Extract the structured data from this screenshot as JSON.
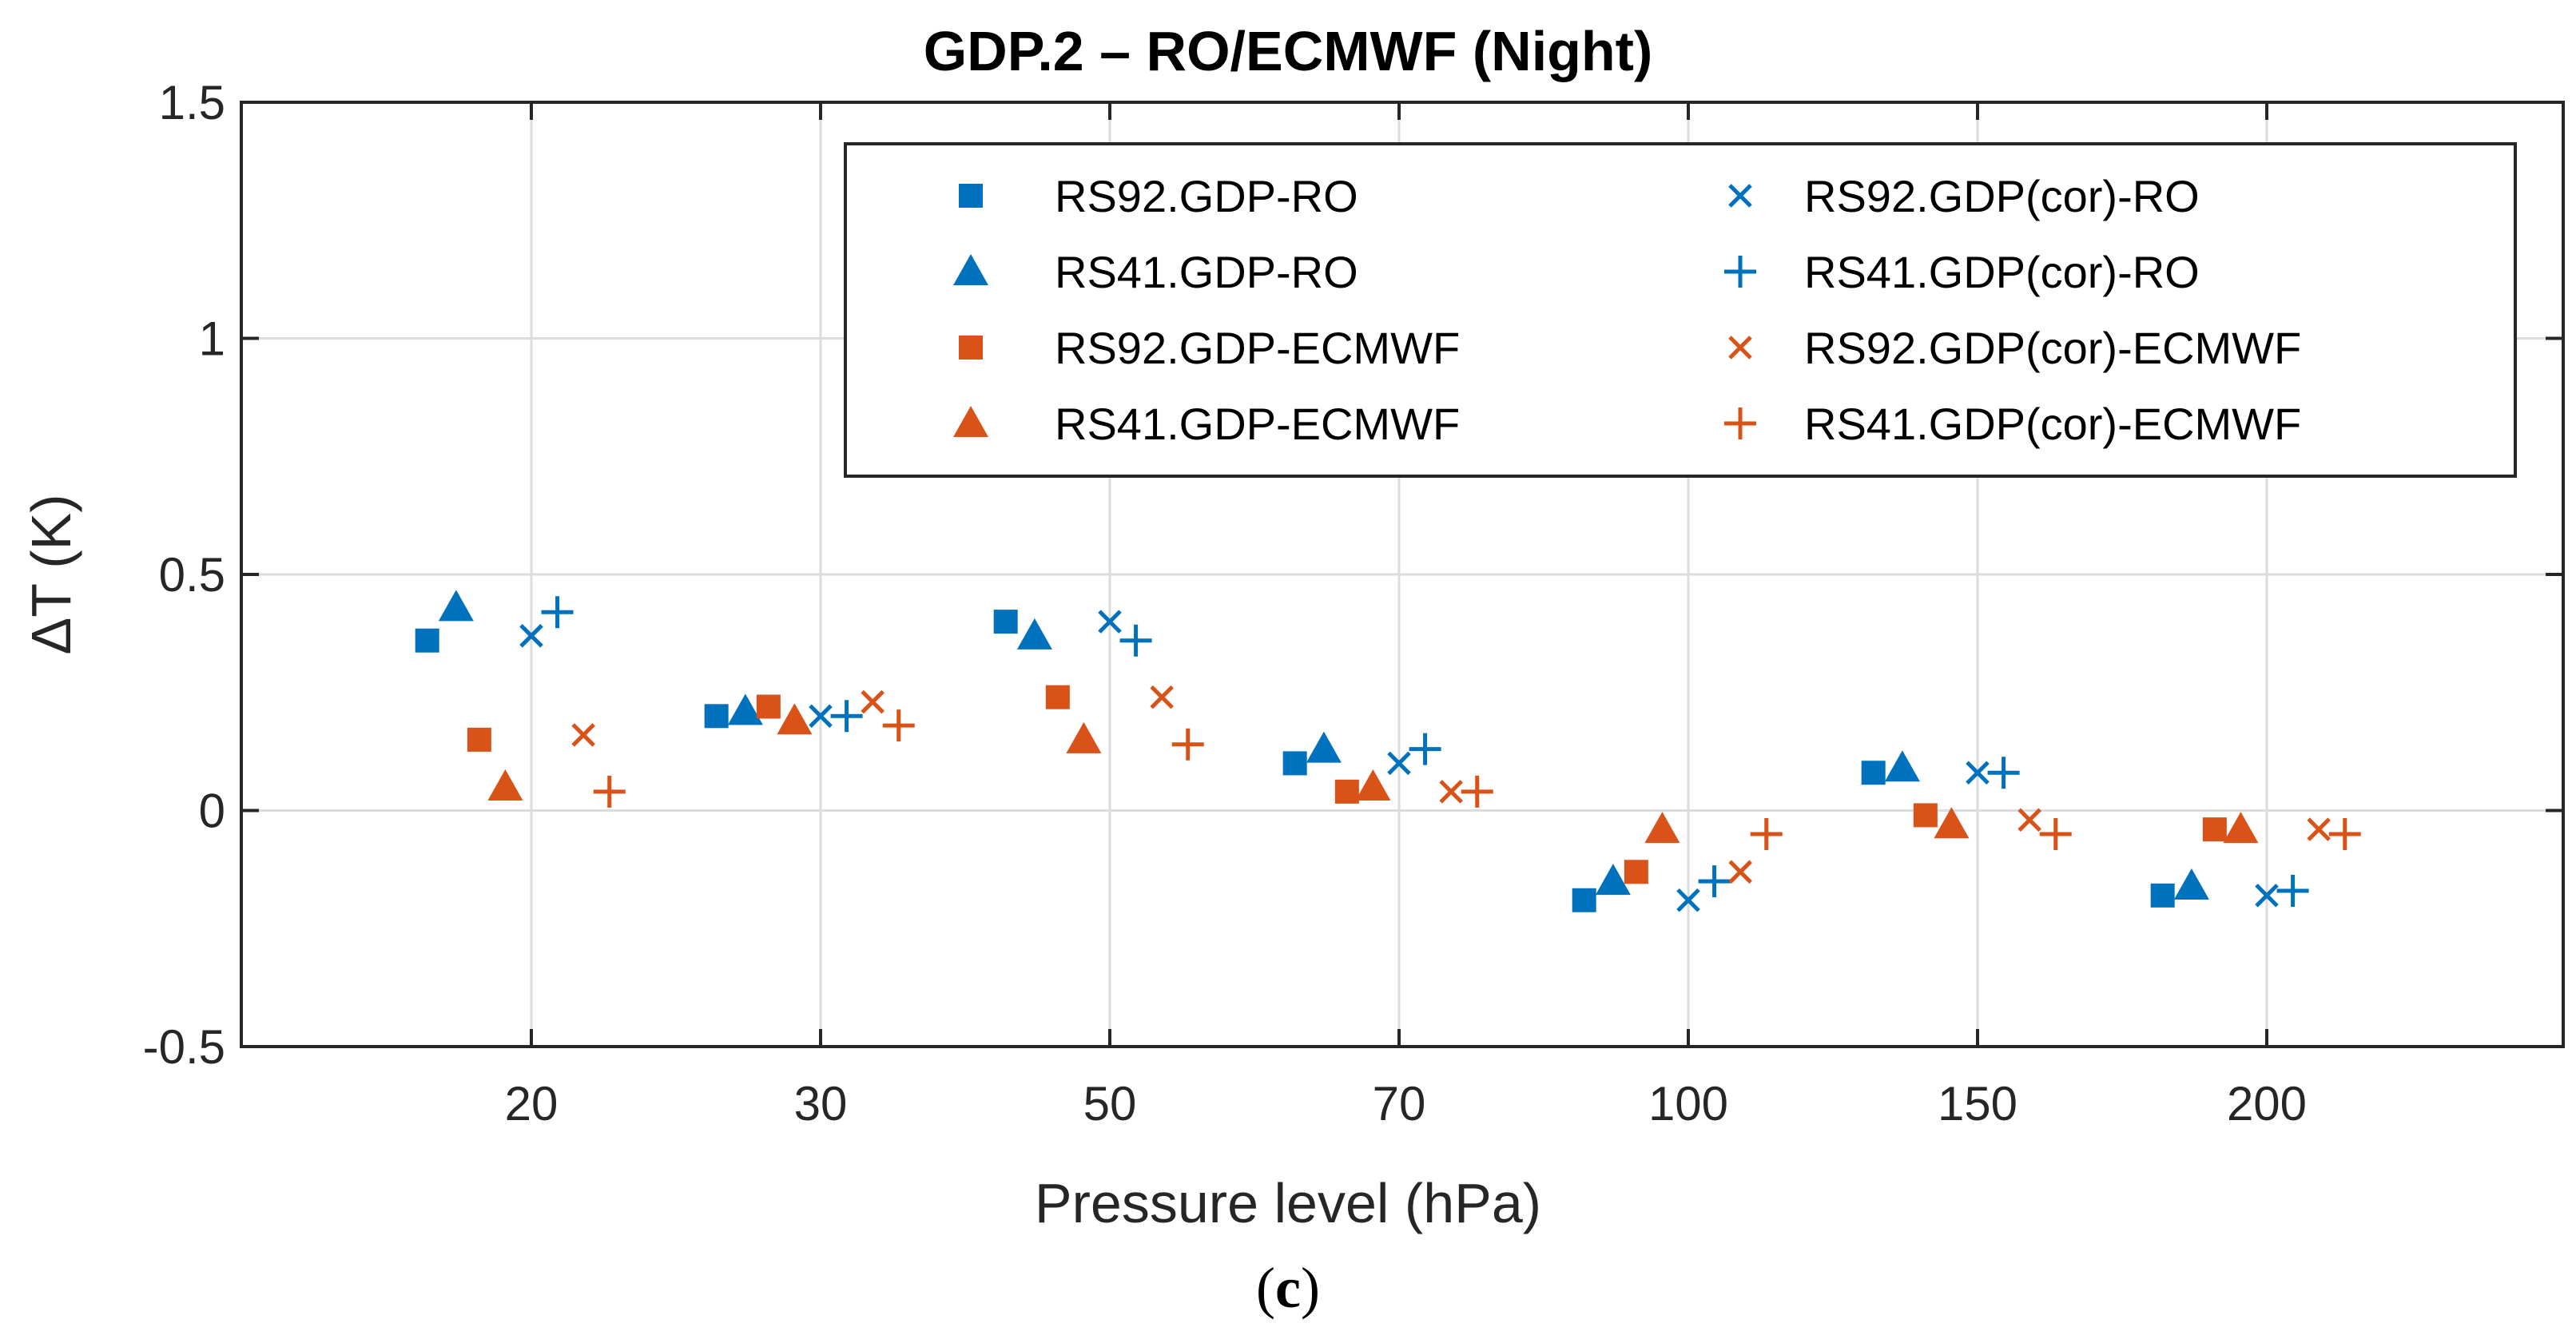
{
  "chart_data": {
    "type": "scatter",
    "title": "GDP.2  – RO/ECMWF (Night)",
    "xlabel": "Pressure level (hPa)",
    "ylabel": "ΔT (K)",
    "caption_letter": "c",
    "categories": [
      "20",
      "30",
      "50",
      "70",
      "100",
      "150",
      "200"
    ],
    "yticks": [
      "1.5",
      "1",
      "0.5",
      "0",
      "-0.5"
    ],
    "ylim": [
      -0.5,
      1.5
    ],
    "grid": true,
    "legend_position": "top-right",
    "colors": {
      "ro": "#0072BD",
      "ecmwf": "#D95319"
    },
    "series": [
      {
        "name": "RS92.GDP-RO",
        "marker": "square",
        "color": "#0072BD",
        "offset": -0.36,
        "values": [
          0.36,
          0.2,
          0.4,
          0.1,
          -0.19,
          0.08,
          -0.18
        ]
      },
      {
        "name": "RS41.GDP-RO",
        "marker": "triangle",
        "color": "#0072BD",
        "offset": -0.26,
        "values": [
          0.43,
          0.21,
          0.37,
          0.13,
          -0.15,
          0.09,
          -0.16
        ]
      },
      {
        "name": "RS92.GDP-ECMWF",
        "marker": "square",
        "color": "#D95319",
        "offset": -0.18,
        "values": [
          0.15,
          0.22,
          0.24,
          0.04,
          -0.13,
          -0.01,
          -0.04
        ]
      },
      {
        "name": "RS41.GDP-ECMWF",
        "marker": "triangle",
        "color": "#D95319",
        "offset": -0.09,
        "values": [
          0.05,
          0.19,
          0.15,
          0.05,
          -0.04,
          -0.03,
          -0.04
        ]
      },
      {
        "name": "RS92.GDP(cor)-RO",
        "marker": "x",
        "color": "#0072BD",
        "offset": 0.0,
        "values": [
          0.37,
          0.2,
          0.4,
          0.1,
          -0.19,
          0.08,
          -0.18
        ]
      },
      {
        "name": "RS41.GDP(cor)-RO",
        "marker": "plus",
        "color": "#0072BD",
        "offset": 0.09,
        "values": [
          0.42,
          0.2,
          0.36,
          0.13,
          -0.15,
          0.08,
          -0.17
        ]
      },
      {
        "name": "RS92.GDP(cor)-ECMWF",
        "marker": "x",
        "color": "#D95319",
        "offset": 0.18,
        "values": [
          0.16,
          0.23,
          0.24,
          0.04,
          -0.13,
          -0.02,
          -0.04
        ]
      },
      {
        "name": "RS41.GDP(cor)-ECMWF",
        "marker": "plus",
        "color": "#D95319",
        "offset": 0.27,
        "values": [
          0.04,
          0.18,
          0.14,
          0.04,
          -0.05,
          -0.05,
          -0.05
        ]
      }
    ]
  }
}
